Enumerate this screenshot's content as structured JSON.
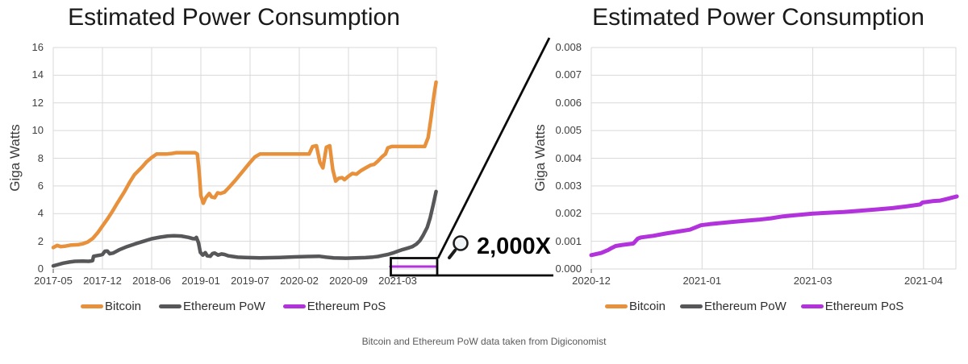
{
  "caption": "Bitcoin and Ethereum PoW data taken from Digiconomist",
  "zoom_callout": {
    "icon": "magnifying-glass-icon",
    "label": "2,000X"
  },
  "colors": {
    "bitcoin": "#E8913C",
    "ethereum_pow": "#57575A",
    "ethereum_pos": "#B233DB",
    "grid": "#D9D9D9",
    "connector": "#0A0A0A"
  },
  "chart_data": [
    {
      "type": "line",
      "title": "Estimated Power Consumption",
      "xlabel": "",
      "ylabel": "Giga Watts",
      "ylim": [
        0,
        16
      ],
      "grid": true,
      "legend_position": "bottom",
      "x_unit": "tick-index (0 = first tick label)",
      "x_tick_labels": [
        "2017-05",
        "2017-12",
        "2018-06",
        "2019-01",
        "2019-07",
        "2020-02",
        "2020-09",
        "2021-03"
      ],
      "y_tick_values": [
        0,
        2,
        4,
        6,
        8,
        10,
        12,
        14,
        16
      ],
      "y_tick_labels": [
        "0",
        "2",
        "4",
        "6",
        "8",
        "10",
        "12",
        "14",
        "16"
      ],
      "legend": [
        {
          "name": "Bitcoin",
          "color": "#E8913C"
        },
        {
          "name": "Ethereum PoW",
          "color": "#57575A"
        },
        {
          "name": "Ethereum PoS",
          "color": "#B233DB"
        }
      ],
      "highlight_region": {
        "x_range": "2020-12 to 2021-04",
        "magnification": "2,000X"
      },
      "series": [
        {
          "name": "Bitcoin",
          "color": "#E8913C",
          "points": [
            [
              0,
              1.55
            ],
            [
              0.08,
              1.7
            ],
            [
              0.15,
              1.62
            ],
            [
              0.25,
              1.65
            ],
            [
              0.35,
              1.72
            ],
            [
              0.5,
              1.75
            ],
            [
              0.6,
              1.82
            ],
            [
              0.7,
              1.95
            ],
            [
              0.8,
              2.2
            ],
            [
              0.9,
              2.6
            ],
            [
              1.0,
              3.1
            ],
            [
              1.1,
              3.6
            ],
            [
              1.2,
              4.15
            ],
            [
              1.3,
              4.75
            ],
            [
              1.45,
              5.6
            ],
            [
              1.55,
              6.25
            ],
            [
              1.65,
              6.8
            ],
            [
              1.8,
              7.35
            ],
            [
              1.9,
              7.75
            ],
            [
              2.0,
              8.05
            ],
            [
              2.1,
              8.3
            ],
            [
              2.3,
              8.3
            ],
            [
              2.42,
              8.35
            ],
            [
              2.5,
              8.4
            ],
            [
              2.88,
              8.4
            ],
            [
              2.93,
              8.3
            ],
            [
              2.97,
              6.8
            ],
            [
              3.0,
              5.3
            ],
            [
              3.05,
              4.75
            ],
            [
              3.1,
              5.15
            ],
            [
              3.17,
              5.45
            ],
            [
              3.22,
              5.2
            ],
            [
              3.28,
              5.15
            ],
            [
              3.34,
              5.5
            ],
            [
              3.4,
              5.45
            ],
            [
              3.48,
              5.55
            ],
            [
              3.56,
              5.85
            ],
            [
              3.7,
              6.4
            ],
            [
              3.85,
              7.05
            ],
            [
              4.0,
              7.7
            ],
            [
              4.1,
              8.1
            ],
            [
              4.2,
              8.3
            ],
            [
              5.2,
              8.3
            ],
            [
              5.27,
              8.85
            ],
            [
              5.35,
              8.9
            ],
            [
              5.42,
              7.7
            ],
            [
              5.48,
              7.3
            ],
            [
              5.55,
              8.8
            ],
            [
              5.62,
              8.9
            ],
            [
              5.68,
              7.2
            ],
            [
              5.74,
              6.35
            ],
            [
              5.8,
              6.55
            ],
            [
              5.87,
              6.6
            ],
            [
              5.92,
              6.45
            ],
            [
              6.0,
              6.7
            ],
            [
              6.08,
              6.9
            ],
            [
              6.16,
              6.85
            ],
            [
              6.25,
              7.1
            ],
            [
              6.35,
              7.3
            ],
            [
              6.45,
              7.5
            ],
            [
              6.52,
              7.55
            ],
            [
              6.6,
              7.8
            ],
            [
              6.68,
              8.1
            ],
            [
              6.75,
              8.3
            ],
            [
              6.8,
              8.75
            ],
            [
              6.88,
              8.85
            ],
            [
              7.55,
              8.85
            ],
            [
              7.62,
              9.5
            ],
            [
              7.68,
              11.0
            ],
            [
              7.74,
              12.6
            ],
            [
              7.78,
              13.5
            ]
          ]
        },
        {
          "name": "Ethereum PoW",
          "color": "#57575A",
          "points": [
            [
              0,
              0.22
            ],
            [
              0.1,
              0.32
            ],
            [
              0.2,
              0.42
            ],
            [
              0.33,
              0.5
            ],
            [
              0.44,
              0.55
            ],
            [
              0.6,
              0.57
            ],
            [
              0.72,
              0.55
            ],
            [
              0.78,
              0.58
            ],
            [
              0.8,
              0.6
            ],
            [
              0.82,
              0.92
            ],
            [
              0.95,
              1.0
            ],
            [
              1.0,
              1.05
            ],
            [
              1.05,
              1.28
            ],
            [
              1.1,
              1.3
            ],
            [
              1.15,
              1.1
            ],
            [
              1.22,
              1.15
            ],
            [
              1.35,
              1.4
            ],
            [
              1.5,
              1.62
            ],
            [
              1.67,
              1.82
            ],
            [
              1.85,
              2.02
            ],
            [
              2.0,
              2.18
            ],
            [
              2.17,
              2.3
            ],
            [
              2.33,
              2.38
            ],
            [
              2.45,
              2.4
            ],
            [
              2.6,
              2.38
            ],
            [
              2.75,
              2.28
            ],
            [
              2.83,
              2.2
            ],
            [
              2.88,
              2.18
            ],
            [
              2.91,
              2.28
            ],
            [
              2.95,
              1.9
            ],
            [
              2.99,
              1.2
            ],
            [
              3.04,
              1.0
            ],
            [
              3.09,
              1.18
            ],
            [
              3.13,
              0.95
            ],
            [
              3.19,
              0.92
            ],
            [
              3.24,
              1.12
            ],
            [
              3.28,
              1.15
            ],
            [
              3.35,
              1.0
            ],
            [
              3.42,
              1.08
            ],
            [
              3.48,
              1.05
            ],
            [
              3.56,
              0.95
            ],
            [
              3.65,
              0.9
            ],
            [
              3.75,
              0.85
            ],
            [
              3.9,
              0.83
            ],
            [
              4.2,
              0.8
            ],
            [
              4.6,
              0.83
            ],
            [
              4.9,
              0.87
            ],
            [
              5.2,
              0.9
            ],
            [
              5.4,
              0.92
            ],
            [
              5.55,
              0.85
            ],
            [
              5.7,
              0.8
            ],
            [
              5.95,
              0.78
            ],
            [
              6.15,
              0.8
            ],
            [
              6.35,
              0.82
            ],
            [
              6.5,
              0.86
            ],
            [
              6.6,
              0.9
            ],
            [
              6.7,
              0.98
            ],
            [
              6.8,
              1.05
            ],
            [
              6.9,
              1.15
            ],
            [
              7.0,
              1.28
            ],
            [
              7.1,
              1.4
            ],
            [
              7.2,
              1.5
            ],
            [
              7.3,
              1.62
            ],
            [
              7.38,
              1.8
            ],
            [
              7.45,
              2.05
            ],
            [
              7.52,
              2.45
            ],
            [
              7.6,
              3.0
            ],
            [
              7.66,
              3.7
            ],
            [
              7.72,
              4.6
            ],
            [
              7.78,
              5.6
            ]
          ]
        },
        {
          "name": "Ethereum PoS",
          "color": "#B233DB",
          "points": [
            [
              6.85,
              0.001
            ],
            [
              7.78,
              0.0026
            ]
          ]
        }
      ]
    },
    {
      "type": "line",
      "title": "Estimated Power Consumption",
      "xlabel": "",
      "ylabel": "Giga Watts",
      "ylim": [
        0,
        0.008
      ],
      "grid": true,
      "legend_position": "bottom",
      "x_unit": "tick-index (0 = first tick label)",
      "x_tick_labels": [
        "2020-12",
        "2021-01",
        "2021-03",
        "2021-04"
      ],
      "y_tick_values": [
        0,
        0.001,
        0.002,
        0.003,
        0.004,
        0.005,
        0.006,
        0.007,
        0.008
      ],
      "y_tick_labels": [
        "0.000",
        "0.001",
        "0.002",
        "0.003",
        "0.004",
        "0.005",
        "0.006",
        "0.007",
        "0.008"
      ],
      "legend": [
        {
          "name": "Bitcoin",
          "color": "#E8913C"
        },
        {
          "name": "Ethereum PoW",
          "color": "#57575A"
        },
        {
          "name": "Ethereum PoS",
          "color": "#B233DB"
        }
      ],
      "series": [
        {
          "name": "Ethereum PoS",
          "color": "#B233DB",
          "points": [
            [
              0,
              0.0005
            ],
            [
              0.09,
              0.00058
            ],
            [
              0.15,
              0.00068
            ],
            [
              0.18,
              0.00075
            ],
            [
              0.22,
              0.00083
            ],
            [
              0.28,
              0.00087
            ],
            [
              0.34,
              0.0009
            ],
            [
              0.38,
              0.00092
            ],
            [
              0.42,
              0.0011
            ],
            [
              0.45,
              0.00114
            ],
            [
              0.56,
              0.0012
            ],
            [
              0.67,
              0.00128
            ],
            [
              0.78,
              0.00135
            ],
            [
              0.89,
              0.00142
            ],
            [
              0.94,
              0.0015
            ],
            [
              0.99,
              0.00158
            ],
            [
              1.07,
              0.00162
            ],
            [
              1.22,
              0.00168
            ],
            [
              1.36,
              0.00173
            ],
            [
              1.51,
              0.00178
            ],
            [
              1.62,
              0.00183
            ],
            [
              1.73,
              0.0019
            ],
            [
              1.84,
              0.00194
            ],
            [
              1.95,
              0.00198
            ],
            [
              2.0,
              0.002
            ],
            [
              2.13,
              0.00203
            ],
            [
              2.28,
              0.00206
            ],
            [
              2.42,
              0.0021
            ],
            [
              2.57,
              0.00215
            ],
            [
              2.72,
              0.0022
            ],
            [
              2.86,
              0.00227
            ],
            [
              2.97,
              0.00233
            ],
            [
              2.99,
              0.0024
            ],
            [
              3.08,
              0.00245
            ],
            [
              3.15,
              0.00247
            ],
            [
              3.2,
              0.00252
            ],
            [
              3.26,
              0.00258
            ],
            [
              3.3,
              0.00262
            ]
          ]
        }
      ]
    }
  ]
}
